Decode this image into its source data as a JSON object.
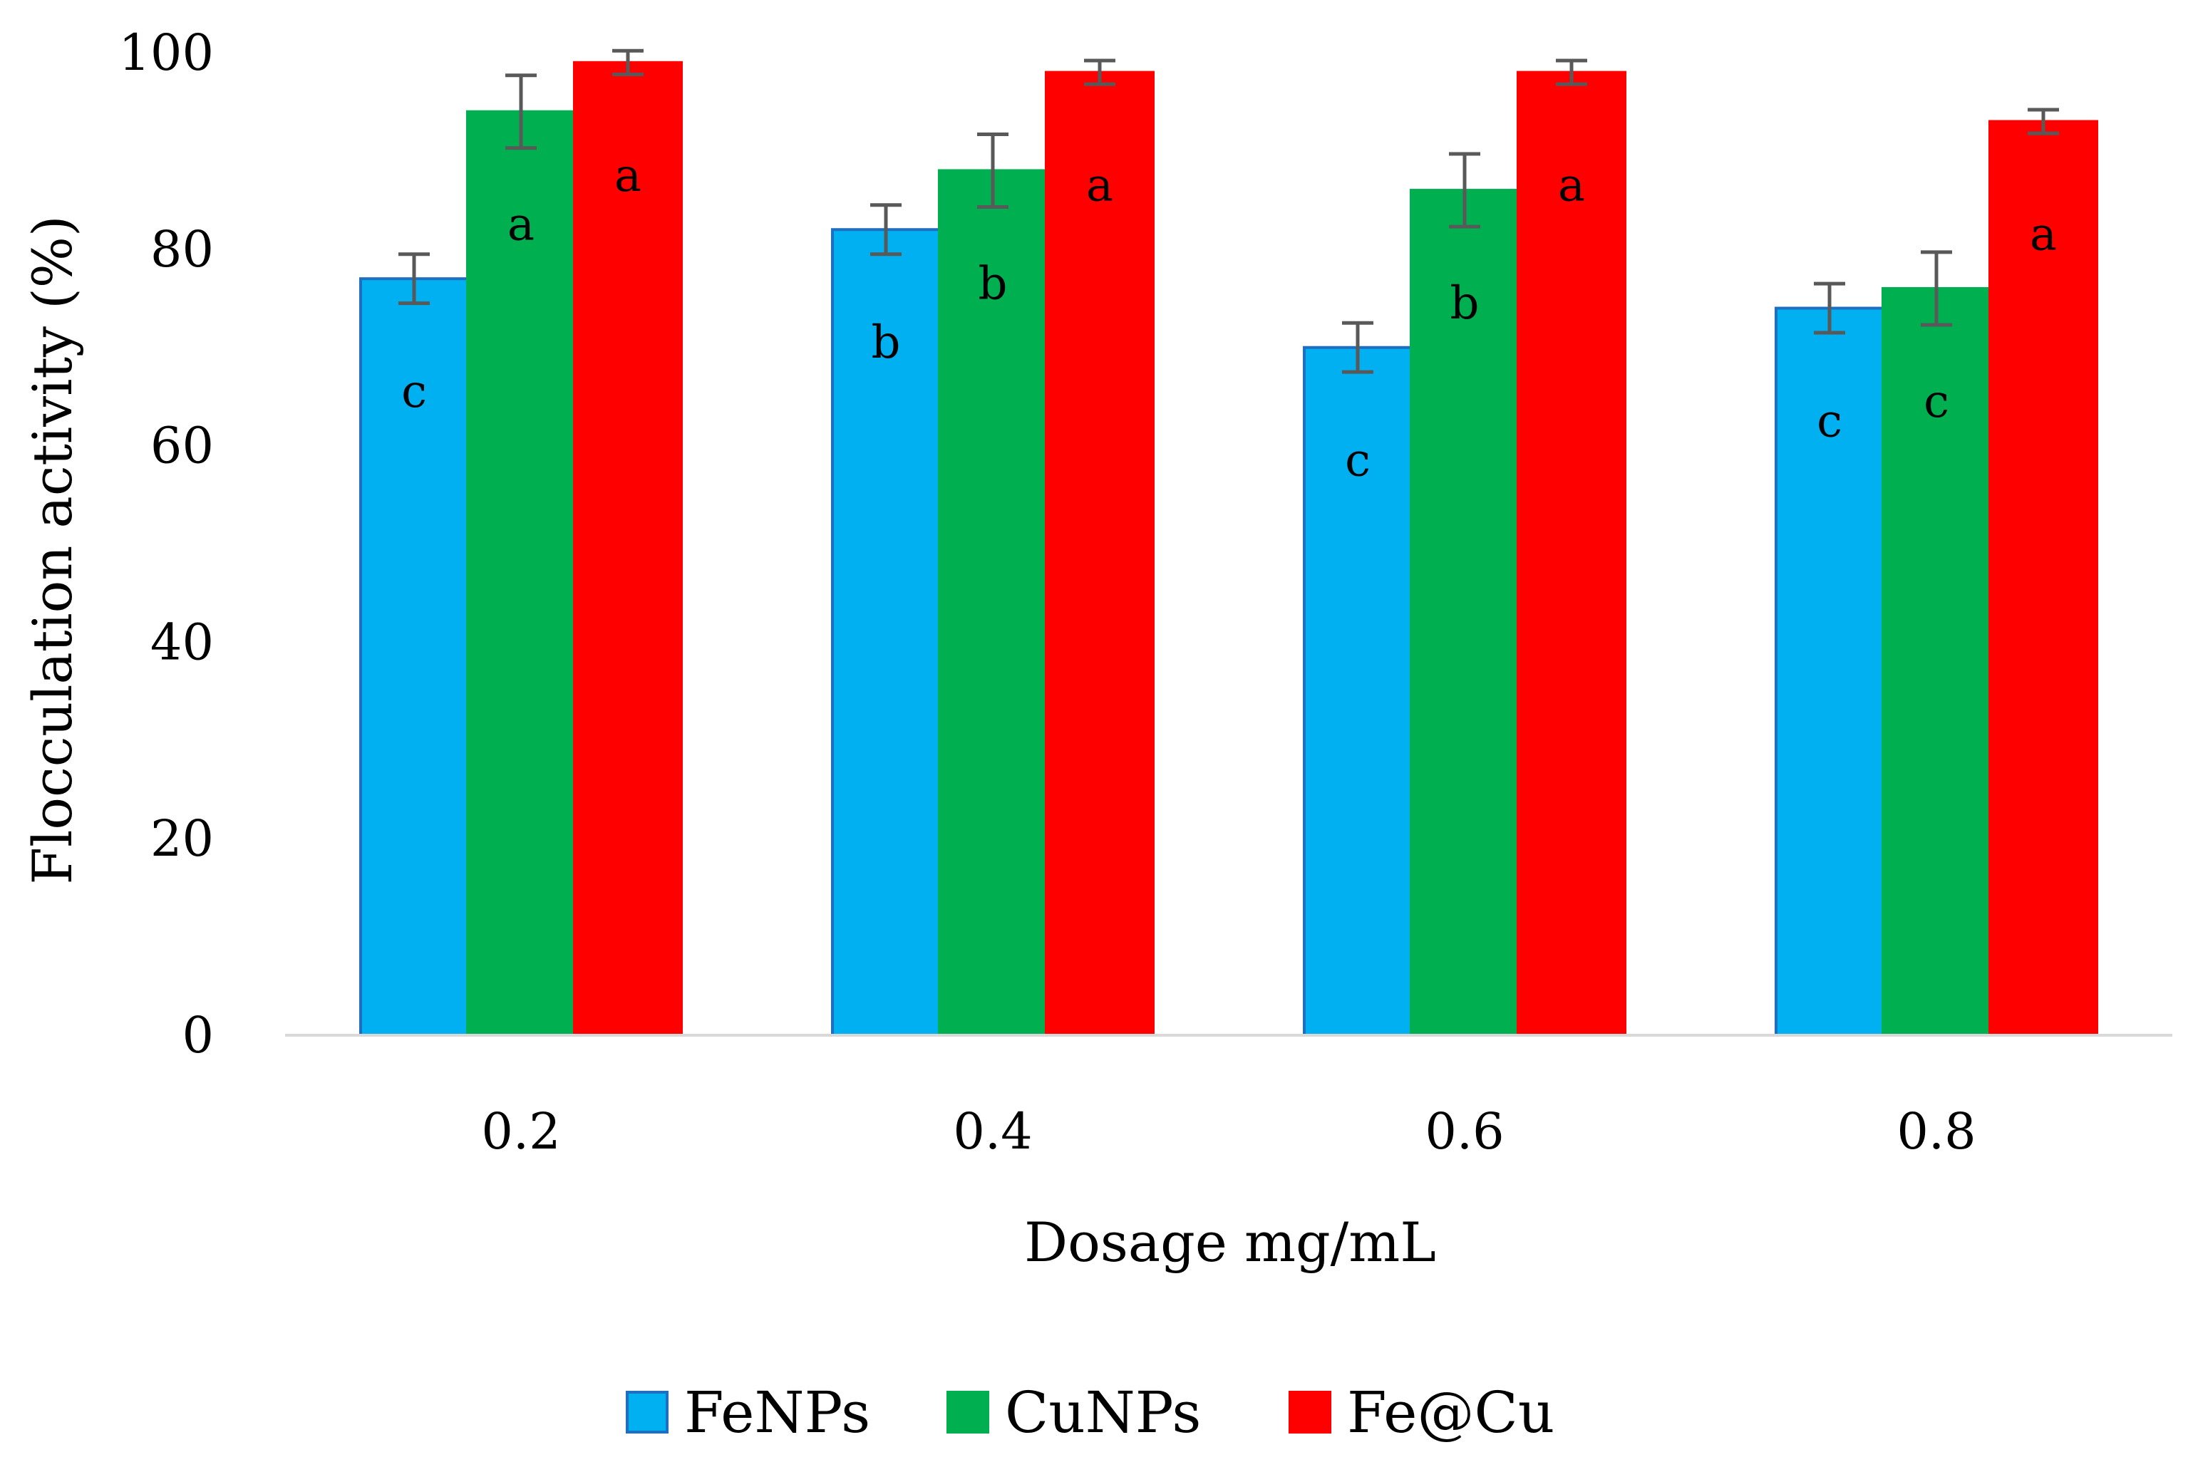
{
  "chart_data": {
    "type": "bar",
    "title": "",
    "xlabel": "Dosage mg/mL",
    "ylabel": "Flocculation activity (%)",
    "ylim": [
      0,
      100
    ],
    "yticks": [
      "0",
      "20",
      "40",
      "60",
      "80",
      "100"
    ],
    "categories": [
      "0.2",
      "0.4",
      "0.6",
      "0.8"
    ],
    "series": [
      {
        "name": "FeNPs",
        "color": "#00B0F0",
        "border": "#1F6FC0",
        "values": [
          77,
          82,
          70,
          74
        ],
        "errors": [
          2.5,
          2.5,
          2.5,
          2.5
        ],
        "letters": [
          "c",
          "b",
          "c",
          "c"
        ]
      },
      {
        "name": "CuNPs",
        "color": "#00B050",
        "border": "#00B050",
        "values": [
          94,
          88,
          86,
          76
        ],
        "errors": [
          3.7,
          3.7,
          3.7,
          3.7
        ],
        "letters": [
          "a",
          "b",
          "b",
          "c"
        ]
      },
      {
        "name": "Fe@Cu",
        "color": "#FF0000",
        "border": "#FF0000",
        "values": [
          99,
          98,
          98,
          93
        ],
        "errors": [
          1.2,
          1.2,
          1.2,
          1.2
        ],
        "letters": [
          "a",
          "a",
          "a",
          "a"
        ]
      }
    ],
    "legend_position": "bottom",
    "grid": false
  }
}
